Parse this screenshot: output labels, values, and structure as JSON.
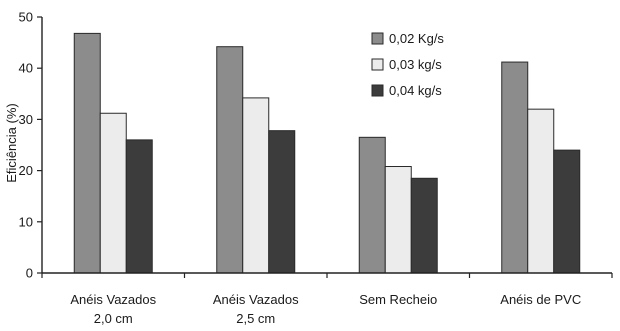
{
  "chart_data": {
    "type": "bar",
    "ylabel": "Eficiência (%)",
    "xlabel": "",
    "ylim": [
      0,
      50
    ],
    "yticks": [
      "0",
      "10",
      "20",
      "30",
      "40",
      "50"
    ],
    "categories": [
      [
        "Anéis Vazados",
        "2,0 cm"
      ],
      [
        "Anéis Vazados",
        "2,5 cm"
      ],
      [
        "Sem Recheio"
      ],
      [
        "Anéis de PVC"
      ]
    ],
    "series": [
      {
        "name": "0,02 Kg/s",
        "color": "#8c8c8c",
        "values": [
          46.8,
          44.2,
          26.5,
          41.2
        ]
      },
      {
        "name": "0,03 kg/s",
        "color": "#ececec",
        "values": [
          31.2,
          34.2,
          20.8,
          32.0
        ]
      },
      {
        "name": "0,04 kg/s",
        "color": "#3c3c3c",
        "values": [
          26.0,
          27.8,
          18.5,
          24.0
        ]
      }
    ],
    "grid": false,
    "legend": "top-right"
  }
}
